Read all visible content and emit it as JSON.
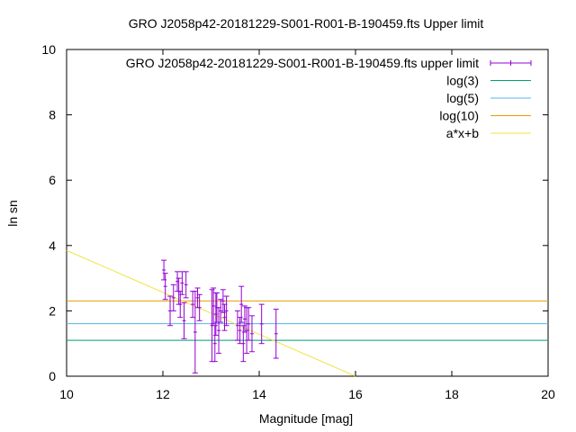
{
  "chart_data": {
    "type": "scatter",
    "title": "GRO J2058p42-20181229-S001-R001-B-190459.fts Upper limit",
    "xlabel": "Magnitude [mag]",
    "ylabel": "ln sn",
    "xlim": [
      10,
      20
    ],
    "ylim": [
      0,
      10
    ],
    "xticks": [
      "10",
      "12",
      "14",
      "16",
      "18",
      "20"
    ],
    "yticks": [
      "0",
      "2",
      "4",
      "6",
      "8",
      "10"
    ],
    "grid": false,
    "legend_position": "top-right",
    "series": [
      {
        "name": "GRO J2058p42-20181229-S001-R001-B-190459.fts upper limit",
        "kind": "errorbars",
        "color": "#9400d3",
        "points": [
          {
            "x": 12.02,
            "y": 3.25,
            "err": 0.3
          },
          {
            "x": 12.05,
            "y": 2.75,
            "err": 0.4
          },
          {
            "x": 12.15,
            "y": 2.0,
            "err": 0.45
          },
          {
            "x": 12.22,
            "y": 2.4,
            "err": 0.4
          },
          {
            "x": 12.3,
            "y": 2.9,
            "err": 0.3
          },
          {
            "x": 12.33,
            "y": 2.6,
            "err": 0.4
          },
          {
            "x": 12.36,
            "y": 2.2,
            "err": 0.4
          },
          {
            "x": 12.4,
            "y": 2.85,
            "err": 0.35
          },
          {
            "x": 12.44,
            "y": 1.7,
            "err": 0.55
          },
          {
            "x": 12.48,
            "y": 2.8,
            "err": 0.4
          },
          {
            "x": 12.62,
            "y": 2.2,
            "err": 0.4
          },
          {
            "x": 12.67,
            "y": 1.35,
            "err": 1.25
          },
          {
            "x": 12.72,
            "y": 2.4,
            "err": 0.3
          },
          {
            "x": 12.76,
            "y": 2.1,
            "err": 0.4
          },
          {
            "x": 13.02,
            "y": 1.55,
            "err": 1.1
          },
          {
            "x": 13.05,
            "y": 2.15,
            "err": 0.55
          },
          {
            "x": 13.08,
            "y": 1.0,
            "err": 0.55
          },
          {
            "x": 13.1,
            "y": 1.9,
            "err": 0.65
          },
          {
            "x": 13.12,
            "y": 2.1,
            "err": 0.45
          },
          {
            "x": 13.16,
            "y": 1.4,
            "err": 0.7
          },
          {
            "x": 13.2,
            "y": 2.0,
            "err": 0.35
          },
          {
            "x": 13.25,
            "y": 2.3,
            "err": 0.35
          },
          {
            "x": 13.28,
            "y": 1.8,
            "err": 0.4
          },
          {
            "x": 13.32,
            "y": 2.0,
            "err": 0.45
          },
          {
            "x": 13.55,
            "y": 1.55,
            "err": 0.45
          },
          {
            "x": 13.6,
            "y": 1.4,
            "err": 0.4
          },
          {
            "x": 13.63,
            "y": 2.2,
            "err": 0.55
          },
          {
            "x": 13.67,
            "y": 1.0,
            "err": 0.55
          },
          {
            "x": 13.7,
            "y": 1.75,
            "err": 0.4
          },
          {
            "x": 13.74,
            "y": 1.4,
            "err": 0.7
          },
          {
            "x": 13.78,
            "y": 1.6,
            "err": 0.5
          },
          {
            "x": 13.85,
            "y": 1.3,
            "err": 0.55
          },
          {
            "x": 14.05,
            "y": 1.6,
            "err": 0.6
          },
          {
            "x": 14.35,
            "y": 1.3,
            "err": 0.75
          }
        ]
      },
      {
        "name": "log(3)",
        "kind": "hline",
        "color": "#009e73",
        "y": 1.0986
      },
      {
        "name": "log(5)",
        "kind": "hline",
        "color": "#56b4e9",
        "y": 1.6094
      },
      {
        "name": "log(10)",
        "kind": "hline",
        "color": "#e69f00",
        "y": 2.3026
      },
      {
        "name": "a*x+b",
        "kind": "line",
        "color": "#f0e442",
        "x": [
          10,
          16
        ],
        "y": [
          3.85,
          0.0
        ]
      }
    ]
  }
}
